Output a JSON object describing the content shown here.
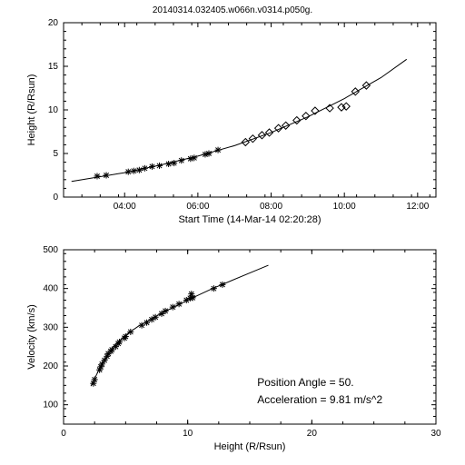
{
  "title": "20140314.032405.w066n.v0314.p050g.",
  "background_color": "#ffffff",
  "axis_color": "#000000",
  "line_color": "#000000",
  "marker_color": "#000000",
  "font_family": "sans-serif",
  "title_fontsize": 10,
  "label_fontsize": 11,
  "tick_fontsize": 10,
  "top_chart": {
    "type": "scatter+line",
    "xlabel": "Start Time (14-Mar-14 02:20:28)",
    "ylabel": "Height (R/Rsun)",
    "xlim": [
      2.333,
      12.5
    ],
    "ylim": [
      0,
      20
    ],
    "xticks": [
      4,
      6,
      8,
      10,
      12
    ],
    "xtick_labels": [
      "04:00",
      "06:00",
      "08:00",
      "10:00",
      "12:00"
    ],
    "yticks": [
      0,
      5,
      10,
      15,
      20
    ],
    "asterisk_points": [
      [
        3.25,
        2.4
      ],
      [
        3.5,
        2.5
      ],
      [
        4.1,
        2.9
      ],
      [
        4.25,
        3.0
      ],
      [
        4.4,
        3.1
      ],
      [
        4.55,
        3.3
      ],
      [
        4.75,
        3.5
      ],
      [
        4.95,
        3.6
      ],
      [
        5.2,
        3.8
      ],
      [
        5.35,
        3.9
      ],
      [
        5.55,
        4.2
      ],
      [
        5.8,
        4.4
      ],
      [
        5.9,
        4.5
      ],
      [
        6.2,
        4.9
      ],
      [
        6.3,
        5.0
      ],
      [
        6.55,
        5.4
      ]
    ],
    "diamond_points": [
      [
        7.3,
        6.3
      ],
      [
        7.5,
        6.7
      ],
      [
        7.75,
        7.1
      ],
      [
        7.95,
        7.4
      ],
      [
        8.2,
        7.9
      ],
      [
        8.4,
        8.2
      ],
      [
        8.7,
        8.8
      ],
      [
        8.95,
        9.3
      ],
      [
        9.2,
        9.9
      ],
      [
        9.6,
        10.2
      ],
      [
        9.92,
        10.3
      ],
      [
        10.05,
        10.4
      ],
      [
        10.3,
        12.1
      ],
      [
        10.6,
        12.8
      ]
    ],
    "fit_line": [
      [
        2.55,
        1.8
      ],
      [
        4.0,
        2.8
      ],
      [
        5.0,
        3.7
      ],
      [
        6.0,
        4.7
      ],
      [
        7.0,
        5.9
      ],
      [
        8.0,
        7.4
      ],
      [
        9.0,
        9.2
      ],
      [
        10.0,
        11.3
      ],
      [
        11.0,
        13.7
      ],
      [
        11.7,
        15.8
      ]
    ]
  },
  "bottom_chart": {
    "type": "scatter+line",
    "xlabel": "Height (R/Rsun)",
    "ylabel": "Velocity (km/s)",
    "xlim": [
      0,
      30
    ],
    "ylim": [
      50,
      500
    ],
    "xticks": [
      0,
      10,
      20,
      30
    ],
    "yticks": [
      100,
      200,
      300,
      400,
      500
    ],
    "asterisk_points": [
      [
        2.4,
        155
      ],
      [
        2.5,
        165
      ],
      [
        2.9,
        190
      ],
      [
        3.0,
        198
      ],
      [
        3.1,
        205
      ],
      [
        3.3,
        215
      ],
      [
        3.5,
        225
      ],
      [
        3.6,
        232
      ],
      [
        3.8,
        238
      ],
      [
        3.9,
        242
      ],
      [
        4.2,
        250
      ],
      [
        4.4,
        258
      ],
      [
        4.5,
        262
      ],
      [
        4.9,
        272
      ],
      [
        5.0,
        276
      ],
      [
        5.4,
        288
      ],
      [
        6.3,
        305
      ],
      [
        6.7,
        312
      ],
      [
        7.1,
        320
      ],
      [
        7.4,
        326
      ],
      [
        7.9,
        335
      ],
      [
        8.2,
        342
      ],
      [
        8.8,
        352
      ],
      [
        9.3,
        360
      ],
      [
        9.9,
        370
      ],
      [
        10.2,
        375
      ],
      [
        10.3,
        386
      ],
      [
        10.4,
        376
      ],
      [
        12.1,
        400
      ],
      [
        12.8,
        410
      ]
    ],
    "fit_line": [
      [
        2.2,
        148
      ],
      [
        3.0,
        200
      ],
      [
        4.0,
        250
      ],
      [
        5.0,
        280
      ],
      [
        6.0,
        302
      ],
      [
        7.0,
        320
      ],
      [
        8.0,
        338
      ],
      [
        10.0,
        370
      ],
      [
        12.0,
        400
      ],
      [
        15.0,
        440
      ],
      [
        16.5,
        460
      ]
    ],
    "annotations": {
      "position_angle_label": "Position Angle =   50.",
      "acceleration_label": "Acceleration =   9.81 m/s^2"
    }
  }
}
